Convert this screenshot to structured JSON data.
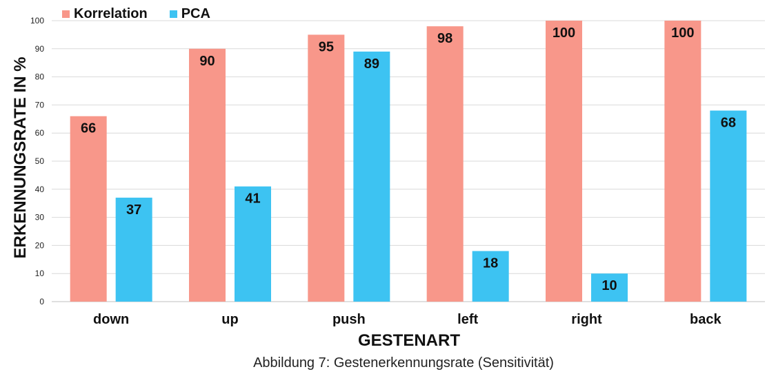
{
  "chart_data": {
    "type": "bar",
    "categories": [
      "down",
      "up",
      "push",
      "left",
      "right",
      "back"
    ],
    "series": [
      {
        "name": "Korrelation",
        "color": "#F8978A",
        "values": [
          66,
          90,
          95,
          98,
          100,
          100
        ]
      },
      {
        "name": "PCA",
        "color": "#3DC3F2",
        "values": [
          37,
          41,
          89,
          18,
          10,
          68
        ]
      }
    ],
    "xlabel": "GESTENART",
    "ylabel": "ERKENNUNGSRATE IN %",
    "ylim": [
      0,
      100
    ],
    "yticks": [
      0,
      10,
      20,
      30,
      40,
      50,
      60,
      70,
      80,
      90,
      100
    ],
    "grid": true,
    "legend": "top-left",
    "data_labels": true
  },
  "caption": "Abbildung 7: Gestenerkennungsrate (Sensitivität)"
}
